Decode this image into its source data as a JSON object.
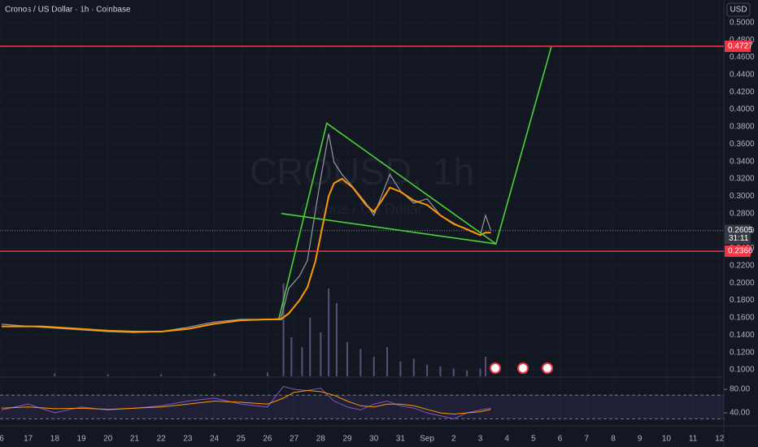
{
  "chart_data": {
    "type": "line",
    "title": "Cronos / US Dollar · 1h · Coinbase",
    "watermark": "CROUSD, 1h",
    "watermark_sub": "Cronos / US Dollar",
    "currency": "USD",
    "x": [
      16,
      17.5,
      19,
      20,
      21,
      22,
      23,
      24,
      25,
      26,
      26.5,
      26.8,
      27.2,
      27.5,
      27.8,
      28.0,
      28.3,
      28.5,
      28.8,
      29.2,
      29.7,
      30.0,
      30.3,
      30.6,
      31.0,
      31.5,
      32.0,
      32.5,
      33.0,
      33.5,
      34.0,
      34.2,
      34.4
    ],
    "series": [
      {
        "color": "#9598a1",
        "values": [
          0.1525,
          0.149,
          0.146,
          0.144,
          0.143,
          0.144,
          0.149,
          0.155,
          0.158,
          0.158,
          0.159,
          0.194,
          0.208,
          0.226,
          0.283,
          0.32,
          0.372,
          0.339,
          0.325,
          0.311,
          0.292,
          0.278,
          0.301,
          0.325,
          0.306,
          0.292,
          0.297,
          0.278,
          0.269,
          0.261,
          0.255,
          0.278,
          0.2605
        ]
      },
      {
        "color": "#ff9800",
        "values": [
          0.15,
          0.15,
          0.147,
          0.145,
          0.144,
          0.144,
          0.147,
          0.153,
          0.157,
          0.158,
          0.158,
          0.165,
          0.18,
          0.195,
          0.225,
          0.255,
          0.3,
          0.315,
          0.32,
          0.31,
          0.29,
          0.282,
          0.295,
          0.31,
          0.305,
          0.295,
          0.29,
          0.278,
          0.268,
          0.262,
          0.255,
          0.258,
          0.258
        ]
      }
    ],
    "xlim": [
      15.94,
      43.16
    ],
    "xticks": [
      {
        "value": 16,
        "label": "6"
      },
      17,
      18,
      19,
      20,
      21,
      22,
      23,
      24,
      25,
      26,
      27,
      28,
      29,
      30,
      31,
      {
        "value": 32,
        "label": "Sep"
      },
      {
        "value": 33,
        "label": "2"
      },
      {
        "value": 34,
        "label": "3"
      },
      {
        "value": 35,
        "label": "4"
      },
      {
        "value": 36,
        "label": "5"
      },
      {
        "value": 37,
        "label": "6"
      },
      {
        "value": 38,
        "label": "7"
      },
      {
        "value": 39,
        "label": "8"
      },
      {
        "value": 40,
        "label": "9"
      },
      {
        "value": 41,
        "label": "10"
      },
      {
        "value": 42,
        "label": "11"
      },
      {
        "value": 43,
        "label": "12"
      }
    ],
    "ylim": [
      0.0925,
      0.526
    ],
    "yticks": [
      {
        "value": 0.1,
        "label": "0.1000"
      },
      {
        "value": 0.12,
        "label": "0.1200"
      },
      {
        "value": 0.14,
        "label": "0.1400"
      },
      {
        "value": 0.16,
        "label": "0.1600"
      },
      {
        "value": 0.18,
        "label": "0.1800"
      },
      {
        "value": 0.2,
        "label": "0.2000"
      },
      {
        "value": 0.22,
        "label": "0.2200"
      },
      {
        "value": 0.24,
        "label": "0.2400"
      },
      {
        "value": 0.26,
        "label": "0.2600"
      },
      {
        "value": 0.28,
        "label": "0.2800"
      },
      {
        "value": 0.3,
        "label": "0.3000"
      },
      {
        "value": 0.32,
        "label": "0.3200"
      },
      {
        "value": 0.34,
        "label": "0.3400"
      },
      {
        "value": 0.36,
        "label": "0.3600"
      },
      {
        "value": 0.38,
        "label": "0.3800"
      },
      {
        "value": 0.4,
        "label": "0.4000"
      },
      {
        "value": 0.42,
        "label": "0.4200"
      },
      {
        "value": 0.44,
        "label": "0.4400"
      },
      {
        "value": 0.46,
        "label": "0.4600"
      },
      {
        "value": 0.48,
        "label": "0.4800"
      },
      {
        "value": 0.5,
        "label": "0.5000"
      }
    ],
    "levels": [
      {
        "value": 0.4727,
        "label": "0.4727",
        "color": "#f23645"
      },
      {
        "value": 0.2366,
        "label": "0.2366",
        "color": "#f23645"
      }
    ],
    "last_price": {
      "value": 0.2605,
      "label": "0.2605",
      "countdown": "31:11"
    },
    "drawings": [
      {
        "color": "#4cd137",
        "x": [
          26.43,
          28.23,
          34.59,
          36.67
        ],
        "y": [
          0.159,
          0.384,
          0.245,
          0.472
        ]
      },
      {
        "color": "#4cd137",
        "x": [
          26.52,
          34.59
        ],
        "y": [
          0.28,
          0.245
        ]
      }
    ],
    "volume": {
      "color": "#5d4e7a",
      "ylim": [
        0,
        100
      ],
      "x": [
        18,
        20,
        22,
        24,
        26,
        26.6,
        26.9,
        27.3,
        27.6,
        28.0,
        28.3,
        28.6,
        29.0,
        29.5,
        30.0,
        30.5,
        31.0,
        31.5,
        32.0,
        32.5,
        33.0,
        33.5,
        34.0,
        34.2
      ],
      "values": [
        3,
        2,
        2,
        3,
        4,
        95,
        40,
        30,
        60,
        45,
        90,
        75,
        35,
        28,
        20,
        30,
        15,
        18,
        12,
        10,
        8,
        6,
        8,
        20
      ]
    },
    "rsi": {
      "color": "#7e57c2",
      "ma_color": "#ff9800",
      "ylim": [
        20.7,
        98
      ],
      "yticks": [
        {
          "value": 80,
          "label": "80.00"
        },
        {
          "value": 40,
          "label": "40.00"
        }
      ],
      "band": [
        30,
        70
      ],
      "x": [
        16,
        17,
        18,
        19,
        20,
        21,
        22,
        23,
        24,
        25,
        26,
        26.6,
        27,
        27.5,
        28,
        28.5,
        29,
        29.5,
        30,
        30.5,
        31,
        31.5,
        32,
        32.5,
        33,
        33.5,
        34,
        34.4
      ],
      "values": [
        45,
        55,
        40,
        50,
        45,
        48,
        52,
        60,
        65,
        55,
        50,
        85,
        80,
        78,
        82,
        60,
        50,
        45,
        55,
        60,
        52,
        48,
        40,
        35,
        30,
        40,
        45,
        48
      ],
      "ma_values": [
        48,
        50,
        47,
        48,
        46,
        48,
        50,
        55,
        60,
        58,
        55,
        65,
        75,
        78,
        76,
        70,
        60,
        52,
        50,
        55,
        55,
        52,
        46,
        40,
        38,
        40,
        42,
        46
      ]
    }
  }
}
